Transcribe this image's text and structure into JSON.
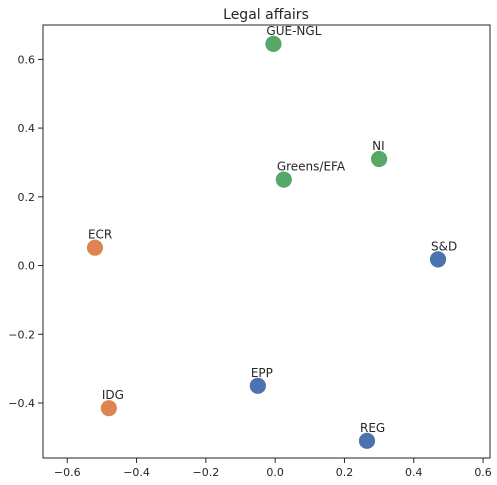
{
  "chart_data": {
    "type": "scatter",
    "title": "Legal affairs",
    "xlabel": "",
    "ylabel": "",
    "xlim": [
      -0.67,
      0.62
    ],
    "ylim": [
      -0.56,
      0.7
    ],
    "x_ticks": [
      -0.6,
      -0.4,
      -0.2,
      0.0,
      0.2,
      0.4,
      0.6
    ],
    "x_tick_labels": [
      "−0.6",
      "−0.4",
      "−0.2",
      "0.0",
      "0.2",
      "0.4",
      "0.6"
    ],
    "y_ticks": [
      -0.4,
      -0.2,
      0.0,
      0.2,
      0.4,
      0.6
    ],
    "y_tick_labels": [
      "−0.4",
      "−0.2",
      "0.0",
      "0.2",
      "0.4",
      "0.6"
    ],
    "grid": false,
    "colors": {
      "blue": "#4c72b0",
      "orange": "#dd8452",
      "green": "#55a868"
    },
    "points": [
      {
        "label": "GUE-NGL",
        "x": -0.005,
        "y": 0.645,
        "color": "green"
      },
      {
        "label": "NI",
        "x": 0.3,
        "y": 0.31,
        "color": "green"
      },
      {
        "label": "Greens/EFA",
        "x": 0.025,
        "y": 0.25,
        "color": "green"
      },
      {
        "label": "ECR",
        "x": -0.52,
        "y": 0.052,
        "color": "orange"
      },
      {
        "label": "S&D",
        "x": 0.47,
        "y": 0.018,
        "color": "blue"
      },
      {
        "label": "EPP",
        "x": -0.05,
        "y": -0.35,
        "color": "blue"
      },
      {
        "label": "IDG",
        "x": -0.48,
        "y": -0.415,
        "color": "orange"
      },
      {
        "label": "REG",
        "x": 0.265,
        "y": -0.51,
        "color": "blue"
      }
    ]
  }
}
